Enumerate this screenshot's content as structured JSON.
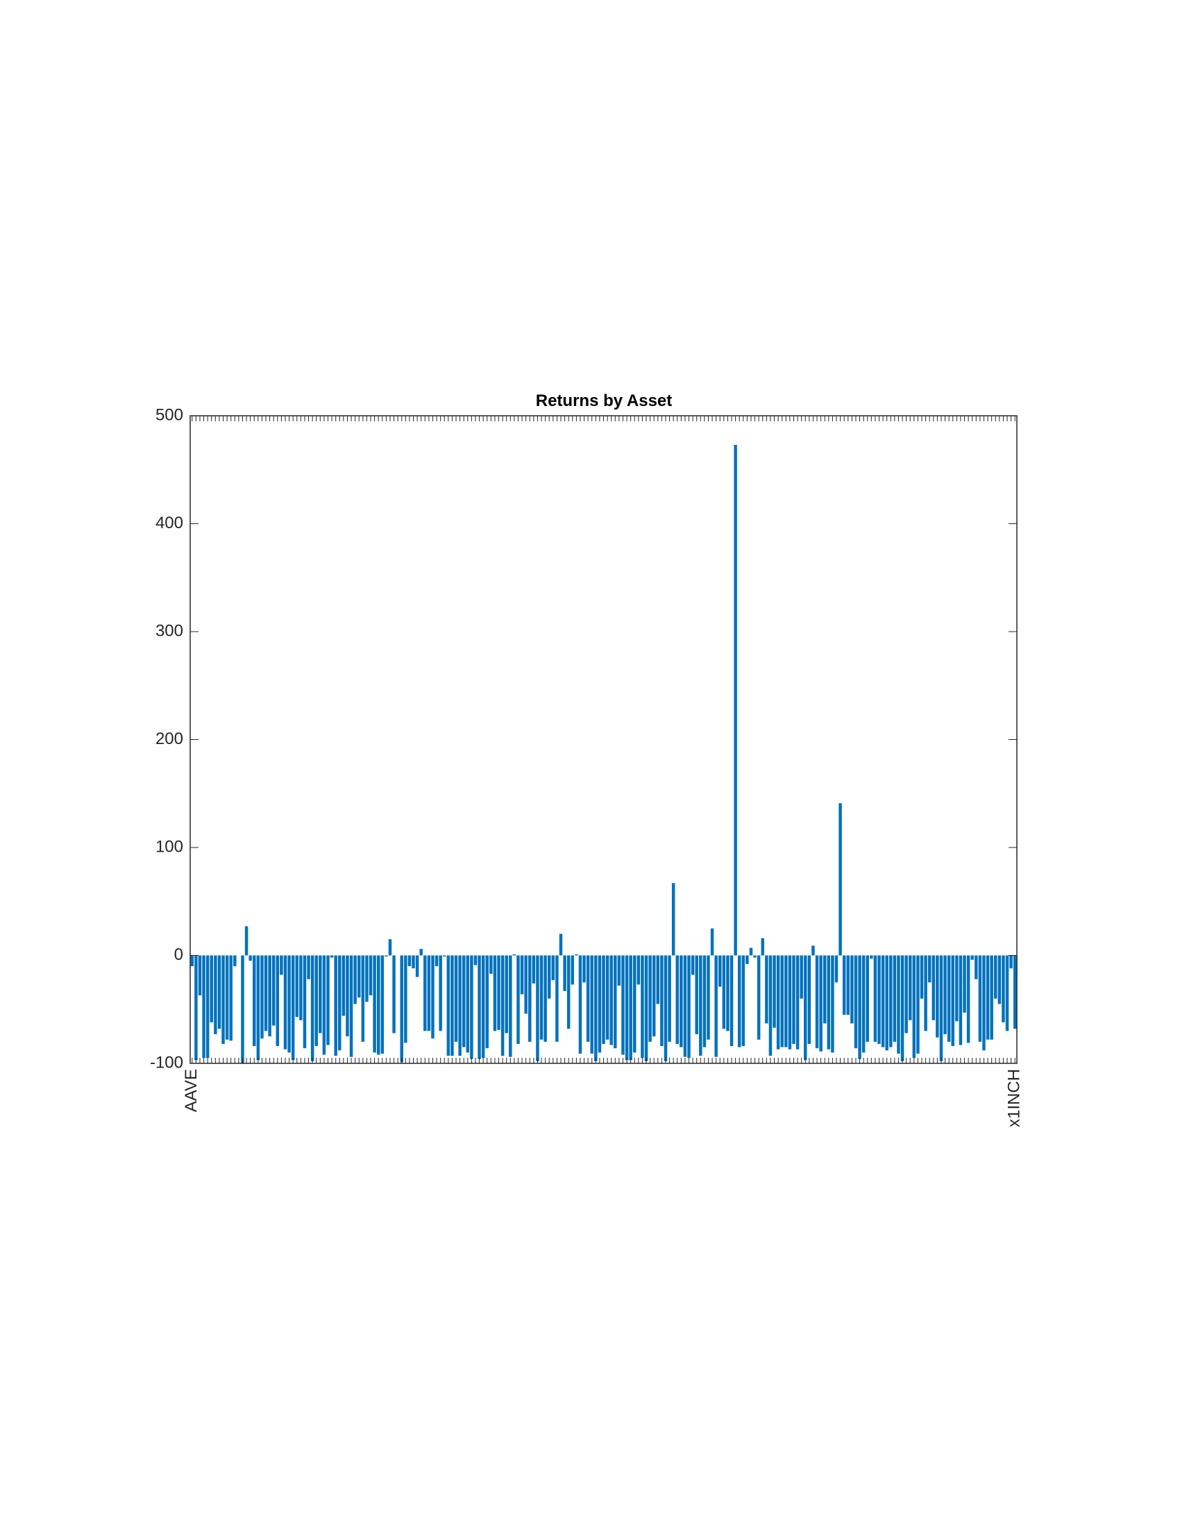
{
  "chart_data": {
    "type": "bar",
    "title": "Returns by Asset",
    "color": "#0072bd",
    "categories": [
      "AAVE",
      null,
      null,
      null,
      null,
      null,
      null,
      null,
      null,
      null,
      null,
      null,
      null,
      null,
      null,
      null,
      null,
      null,
      null,
      null,
      null,
      null,
      null,
      null,
      null,
      null,
      null,
      null,
      null,
      null,
      null,
      null,
      null,
      null,
      null,
      null,
      null,
      null,
      null,
      null,
      null,
      null,
      null,
      null,
      null,
      null,
      null,
      null,
      null,
      null,
      null,
      null,
      null,
      null,
      null,
      null,
      null,
      null,
      null,
      null,
      null,
      null,
      null,
      null,
      null,
      null,
      null,
      null,
      null,
      null,
      null,
      null,
      null,
      null,
      null,
      null,
      null,
      null,
      null,
      null,
      null,
      null,
      null,
      null,
      null,
      null,
      null,
      null,
      null,
      null,
      null,
      null,
      null,
      null,
      null,
      null,
      null,
      null,
      null,
      null,
      null,
      null,
      null,
      null,
      null,
      null,
      null,
      null,
      null,
      null,
      null,
      null,
      null,
      null,
      null,
      null,
      null,
      null,
      null,
      null,
      null,
      null,
      null,
      null,
      null,
      null,
      null,
      null,
      null,
      null,
      null,
      null,
      null,
      null,
      null,
      null,
      null,
      null,
      null,
      null,
      null,
      null,
      null,
      null,
      null,
      null,
      null,
      null,
      null,
      null,
      null,
      null,
      null,
      null,
      null,
      null,
      null,
      null,
      null,
      null,
      null,
      null,
      null,
      null,
      null,
      null,
      null,
      null,
      null,
      null,
      null,
      null,
      null,
      null,
      null,
      null,
      null,
      null,
      null,
      null,
      null,
      null,
      null,
      null,
      null,
      null,
      null,
      null,
      null,
      null,
      null,
      null,
      null,
      null,
      null,
      null,
      null,
      null,
      null,
      null,
      null,
      null,
      null,
      null,
      null,
      null,
      null,
      null,
      null,
      null,
      null,
      null,
      "x1INCH"
    ],
    "values": [
      -10,
      -97,
      -37,
      -95,
      -95,
      -62,
      -73,
      -68,
      -82,
      -78,
      -79,
      -10,
      0,
      -100,
      27,
      -5,
      -84,
      -97,
      -77,
      -70,
      -75,
      -65,
      -84,
      -18,
      -87,
      -90,
      -97,
      -57,
      -60,
      -86,
      -22,
      -98,
      -84,
      -72,
      -92,
      -83,
      -2,
      -93,
      -88,
      -56,
      -75,
      -94,
      -45,
      -39,
      -80,
      -43,
      -37,
      -90,
      -92,
      -91,
      -1,
      15,
      -72,
      0,
      -99,
      -81,
      -10,
      -12,
      -20,
      6,
      -70,
      -70,
      -77,
      -10,
      -70,
      -1,
      -93,
      -93,
      -80,
      -93,
      -85,
      -90,
      -96,
      -9,
      -96,
      -95,
      -86,
      -17,
      -70,
      -69,
      -93,
      -72,
      -94,
      1,
      -82,
      -36,
      -54,
      -80,
      -26,
      -98,
      -78,
      -80,
      -40,
      -23,
      -80,
      20,
      -33,
      -68,
      -27,
      1,
      -91,
      -25,
      -80,
      -91,
      -98,
      -90,
      -82,
      -78,
      -83,
      -86,
      -28,
      -92,
      -97,
      -97,
      -90,
      -27,
      -95,
      -98,
      -80,
      -75,
      -45,
      -84,
      -98,
      -80,
      67,
      -82,
      -85,
      -94,
      -95,
      -18,
      -73,
      -93,
      -85,
      -78,
      25,
      -94,
      -29,
      -68,
      -70,
      -84,
      473,
      -85,
      -84,
      -8,
      7,
      -2,
      -78,
      16,
      -63,
      -93,
      -67,
      -87,
      -85,
      -85,
      -87,
      -82,
      -87,
      -40,
      -97,
      -82,
      9,
      -86,
      -89,
      -63,
      -87,
      -90,
      -25,
      141,
      -55,
      -55,
      -63,
      -86,
      -96,
      -90,
      -80,
      -3,
      -80,
      -82,
      -85,
      -88,
      -85,
      -80,
      -91,
      -98,
      -72,
      -60,
      -95,
      -91,
      -40,
      -70,
      -25,
      -60,
      -76,
      -98,
      -73,
      -80,
      -84,
      -61,
      -83,
      -53,
      -81,
      -4,
      -22,
      -80,
      -88,
      -78,
      -78,
      -40,
      -45,
      -62,
      -70,
      -12,
      -68
    ],
    "ylim": [
      -100,
      500
    ],
    "yticks": [
      -100,
      0,
      100,
      200,
      300,
      400,
      500
    ]
  }
}
